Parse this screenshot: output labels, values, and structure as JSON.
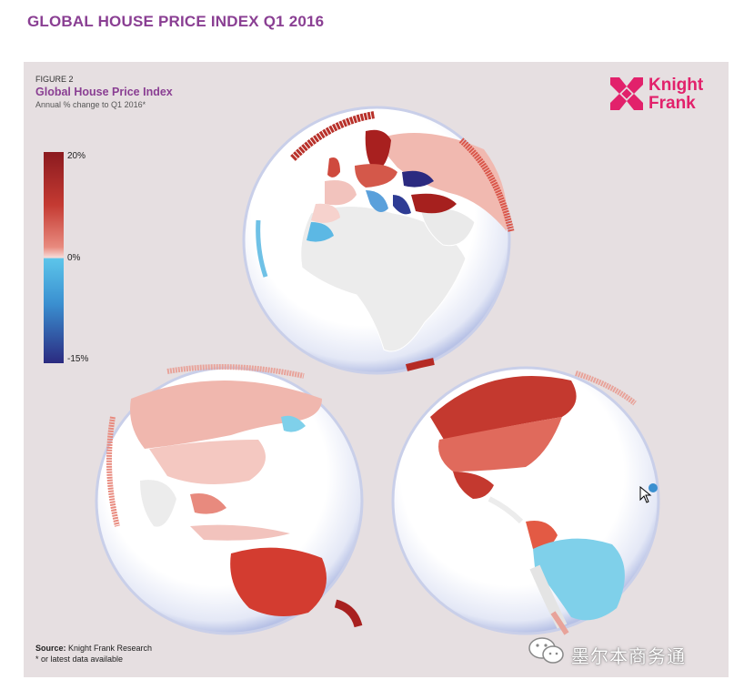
{
  "header": {
    "title": "GLOBAL HOUSE PRICE INDEX Q1 2016"
  },
  "figure": {
    "label": "FIGURE 2",
    "title": "Global House Price Index",
    "subtitle": "Annual % change to Q1 2016*"
  },
  "brand": {
    "line1": "Knight",
    "line2": "Frank",
    "color": "#e2216b"
  },
  "legend": {
    "max_label": "20%",
    "zero_label": "0%",
    "min_label": "-15%",
    "scale": {
      "max": 20,
      "zero": 0,
      "min": -15
    },
    "colors": {
      "high": "#8b1a1f",
      "mid_positive": "#e88a7e",
      "low_positive": "#f7dcd9",
      "low_negative": "#5cc5ea",
      "min": "#2b2a80"
    }
  },
  "source": {
    "label": "Source:",
    "text": " Knight Frank Research"
  },
  "note": "* or latest data available",
  "watermark": {
    "text": "墨尔本商务通"
  }
}
